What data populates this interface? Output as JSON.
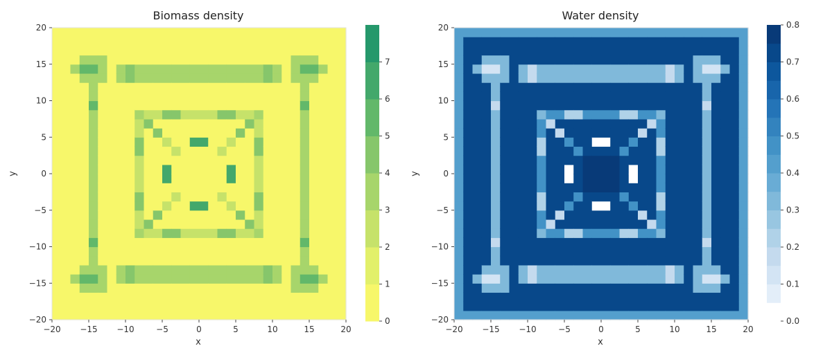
{
  "chart_data": [
    {
      "type": "heatmap",
      "title": "Biomass density",
      "xlabel": "x",
      "ylabel": "y",
      "xlim": [
        -20,
        20
      ],
      "ylim": [
        -20,
        20
      ],
      "x_ticks": [
        -20,
        -15,
        -10,
        -5,
        0,
        5,
        10,
        15,
        20
      ],
      "x_tick_labels": [
        "−20",
        "−15",
        "−10",
        "−5",
        "0",
        "5",
        "10",
        "15",
        "20"
      ],
      "y_ticks": [
        -20,
        -15,
        -10,
        -5,
        0,
        5,
        10,
        15,
        20
      ],
      "y_tick_labels": [
        "−20",
        "−15",
        "−10",
        "−5",
        "0",
        "5",
        "10",
        "15",
        "20"
      ],
      "grid": false,
      "grid_cells": 32,
      "pattern": "symmetric nested square rings with diagonal cross; low (yellow) background",
      "values_min": 0,
      "values_max": 8,
      "colorbar": {
        "levels": [
          0,
          1,
          2,
          3,
          4,
          5,
          6,
          7,
          8
        ],
        "colors": [
          "#f7f76a",
          "#e2f06a",
          "#c6e26a",
          "#a7d56b",
          "#86c66b",
          "#62b86a",
          "#43a86b",
          "#25986b",
          "#14876a"
        ],
        "tick_values": [
          0,
          1,
          2,
          3,
          4,
          5,
          6,
          7
        ],
        "tick_labels": [
          "0",
          "1",
          "2",
          "3",
          "4",
          "5",
          "6",
          "7"
        ],
        "placement": "right"
      }
    },
    {
      "type": "heatmap",
      "title": "Water density",
      "xlabel": "x",
      "ylabel": "y",
      "xlim": [
        -20,
        20
      ],
      "ylim": [
        -20,
        20
      ],
      "x_ticks": [
        -20,
        -15,
        -10,
        -5,
        0,
        5,
        10,
        15,
        20
      ],
      "x_tick_labels": [
        "−20",
        "−15",
        "−10",
        "−5",
        "0",
        "5",
        "10",
        "15",
        "20"
      ],
      "y_ticks": [
        -20,
        -15,
        -10,
        -5,
        0,
        5,
        10,
        15,
        20
      ],
      "y_tick_labels": [
        "−20",
        "−15",
        "−10",
        "−5",
        "0",
        "5",
        "10",
        "15",
        "20"
      ],
      "grid": false,
      "grid_cells": 32,
      "pattern": "inverse of biomass: high water between rings, low water on vegetation",
      "values_min": 0.0,
      "values_max": 0.8,
      "colorbar": {
        "levels": [
          0.0,
          0.05,
          0.1,
          0.15,
          0.2,
          0.25,
          0.3,
          0.35,
          0.4,
          0.45,
          0.5,
          0.55,
          0.6,
          0.65,
          0.7,
          0.75,
          0.8
        ],
        "colors": [
          "#ffffff",
          "#e3eef9",
          "#d3e4f4",
          "#c4daee",
          "#b0d2e8",
          "#98c6e1",
          "#80b9da",
          "#69acd5",
          "#549fcd",
          "#4292c6",
          "#3383be",
          "#2474b7",
          "#1865ab",
          "#0d579d",
          "#08488a",
          "#083a78"
        ],
        "tick_values": [
          0.0,
          0.1,
          0.2,
          0.3,
          0.4,
          0.5,
          0.6,
          0.7,
          0.8
        ],
        "tick_labels": [
          "0.0",
          "0.1",
          "0.2",
          "0.3",
          "0.4",
          "0.5",
          "0.6",
          "0.7",
          "0.8"
        ],
        "placement": "right"
      }
    }
  ]
}
